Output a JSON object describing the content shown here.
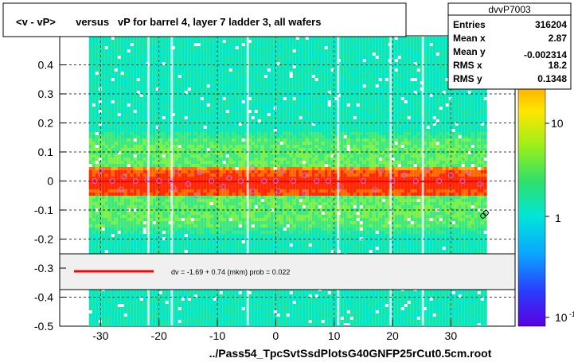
{
  "title": "<v - vP>       versus   vP for barrel 4, layer 7 ladder 3, all wafers",
  "footer": "../Pass54_TpcSvtSsdPlotsG40GNFP25rCut0.5cm.root",
  "stats": {
    "name": "dvvP7003",
    "rows": [
      {
        "label": "Entries",
        "value": "316204"
      },
      {
        "label": "Mean x",
        "value": "2.87"
      },
      {
        "label": "Mean y",
        "value": "-0.002314"
      },
      {
        "label": "RMS x",
        "value": "18.2"
      },
      {
        "label": "RMS y",
        "value": "0.1348"
      }
    ]
  },
  "fit_text": "dv =   -1.69 +  0.74 (mkm) prob = 0.022",
  "colorbar": {
    "ticks": [
      "10",
      "1",
      "10"
    ],
    "scale": "log"
  },
  "chart_data": {
    "type": "heatmap",
    "title": "<v - vP>       versus   vP for barrel 4, layer 7 ladder 3, all wafers",
    "xlabel": "",
    "ylabel": "",
    "xlim": [
      -37,
      41
    ],
    "ylim": [
      -0.5,
      0.5
    ],
    "x_ticks": [
      -30,
      -20,
      -10,
      0,
      10,
      20,
      30
    ],
    "x_tick_labels": [
      "-30",
      "-20",
      "-10",
      "0",
      "10",
      "20",
      "30"
    ],
    "y_ticks": [
      0.4,
      0.3,
      0.2,
      0.1,
      0,
      -0.1,
      -0.2,
      -0.3,
      -0.4,
      -0.5
    ],
    "y_tick_labels": [
      "0.4",
      "0.3",
      "0.2",
      "0.1",
      "0",
      "-0.1",
      "-0.2",
      "-0.3",
      "-0.4",
      "-0.5"
    ],
    "grid": true,
    "data_x_range": [
      -32,
      36
    ],
    "band_center_y": 0.0,
    "profile_points": [
      {
        "x": -31,
        "y": 0.0
      },
      {
        "x": -30,
        "y": 0.035
      },
      {
        "x": -28,
        "y": 0.0
      },
      {
        "x": -26.5,
        "y": -0.03
      },
      {
        "x": -26,
        "y": 0.015
      },
      {
        "x": -24,
        "y": 0.0
      },
      {
        "x": -22,
        "y": 0.005
      },
      {
        "x": -20,
        "y": 0.0
      },
      {
        "x": -18,
        "y": 0.0
      },
      {
        "x": -17.5,
        "y": -0.025
      },
      {
        "x": -17,
        "y": 0.035
      },
      {
        "x": -15,
        "y": -0.01
      },
      {
        "x": -13.5,
        "y": -0.05
      },
      {
        "x": -13,
        "y": 0.03
      },
      {
        "x": -11,
        "y": 0.0
      },
      {
        "x": -9,
        "y": -0.02
      },
      {
        "x": -8,
        "y": 0.01
      },
      {
        "x": -6,
        "y": 0.0
      },
      {
        "x": -4,
        "y": 0.045
      },
      {
        "x": -4,
        "y": -0.035
      },
      {
        "x": -2,
        "y": 0.0
      },
      {
        "x": 0,
        "y": 0.0
      },
      {
        "x": 0.5,
        "y": -0.035
      },
      {
        "x": 1,
        "y": 0.035
      },
      {
        "x": 3,
        "y": 0.0
      },
      {
        "x": 5,
        "y": 0.02
      },
      {
        "x": 5,
        "y": -0.04
      },
      {
        "x": 7,
        "y": 0.0
      },
      {
        "x": 9,
        "y": 0.0
      },
      {
        "x": 11,
        "y": -0.02
      },
      {
        "x": 13,
        "y": 0.04
      },
      {
        "x": 15,
        "y": 0.0
      },
      {
        "x": 17,
        "y": -0.03
      },
      {
        "x": 18,
        "y": 0.035
      },
      {
        "x": 20,
        "y": 0.0
      },
      {
        "x": 22,
        "y": 0.02
      },
      {
        "x": 24,
        "y": 0.0
      },
      {
        "x": 26,
        "y": 0.04
      },
      {
        "x": 28,
        "y": 0.0
      },
      {
        "x": 30,
        "y": 0.02
      },
      {
        "x": 32,
        "y": 0.0
      },
      {
        "x": 33,
        "y": 0.03
      },
      {
        "x": 35,
        "y": -0.01
      },
      {
        "x": 35.5,
        "y": -0.12
      },
      {
        "x": 36,
        "y": -0.11
      }
    ],
    "fit_line": {
      "intercept": -0.00169,
      "slope": 7.4e-07
    }
  }
}
